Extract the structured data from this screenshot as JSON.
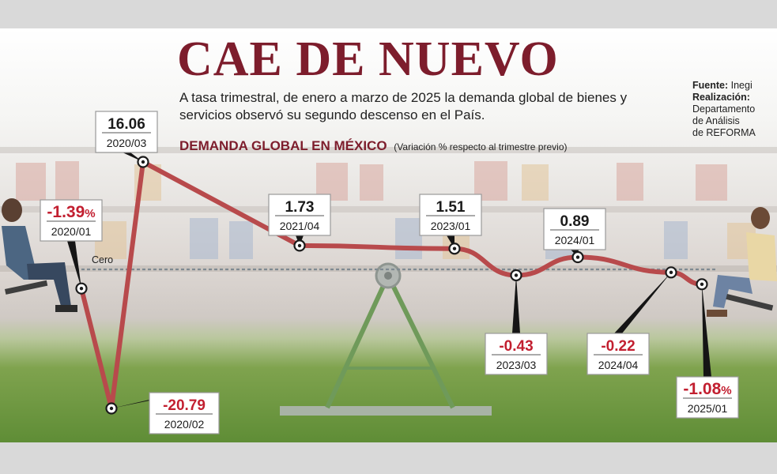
{
  "title": "CAE DE NUEVO",
  "subtitle": "A tasa trimestral, de enero a marzo de 2025 la demanda global de bienes y servicios observó su segundo descenso en el País.",
  "chart_heading": "DEMANDA GLOBAL EN MÉXICO",
  "chart_subheading": "(Variación % respecto al trimestre previo)",
  "credits": {
    "source_label": "Fuente:",
    "source_value": "Inegi",
    "made_label": "Realización:",
    "made_lines": [
      "Departamento",
      "de Análisis",
      "de REFORMA"
    ]
  },
  "colors": {
    "brand": "#7d1d2c",
    "line": "#b84a4c",
    "negative": "#c21f30"
  },
  "chart_data": {
    "type": "line",
    "title": "DEMANDA GLOBAL EN MÉXICO",
    "subtitle": "(Variación % respecto al trimestre previo)",
    "zero_label": "Cero",
    "ylim": [
      -22,
      18
    ],
    "grid": false,
    "series": [
      {
        "values": [
          -1.39,
          -20.79,
          16.06,
          1.73,
          1.51,
          -0.43,
          0.89,
          -0.22,
          -1.08
        ]
      }
    ],
    "points": [
      {
        "period": "2020/01",
        "value": -1.39,
        "label": "-1.39",
        "pct": true
      },
      {
        "period": "2020/02",
        "value": -20.79,
        "label": "-20.79",
        "pct": false
      },
      {
        "period": "2020/03",
        "value": 16.06,
        "label": "16.06",
        "pct": false
      },
      {
        "period": "2021/04",
        "value": 1.73,
        "label": "1.73",
        "pct": false
      },
      {
        "period": "2023/01",
        "value": 1.51,
        "label": "1.51",
        "pct": false
      },
      {
        "period": "2023/03",
        "value": -0.43,
        "label": "-0.43",
        "pct": false
      },
      {
        "period": "2024/01",
        "value": 0.89,
        "label": "0.89",
        "pct": false
      },
      {
        "period": "2024/04",
        "value": -0.22,
        "label": "-0.22",
        "pct": false
      },
      {
        "period": "2025/01",
        "value": -1.08,
        "label": "-1.08",
        "pct": true
      }
    ]
  }
}
